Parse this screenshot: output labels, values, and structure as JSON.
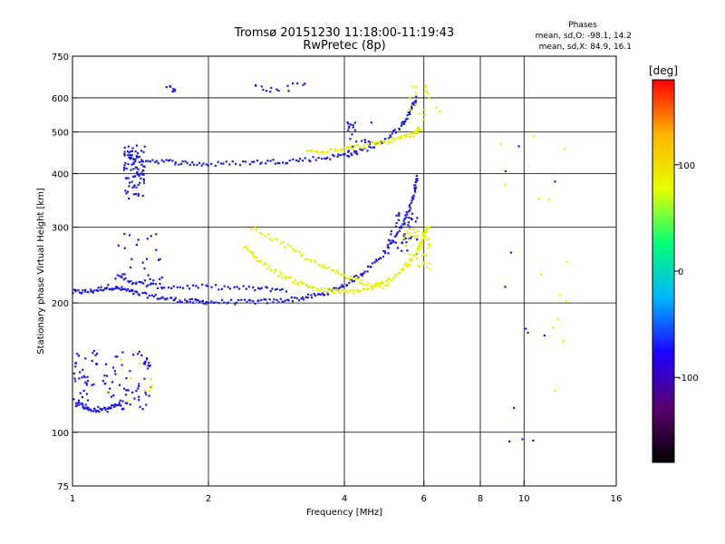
{
  "chart_data": {
    "type": "scatter",
    "title": "Tromsø 20151230 11:18:00-11:19:43",
    "subtitle": "RwPretec (8p)",
    "xlabel": "Frequency [MHz]",
    "ylabel": "Stationary phase Virtual Height [km]",
    "x_scale": "log",
    "y_scale": "log",
    "xlim": [
      1,
      16
    ],
    "ylim": [
      75,
      750
    ],
    "x_ticks": [
      1,
      2,
      4,
      6,
      8,
      10,
      16
    ],
    "y_ticks": [
      75,
      100,
      200,
      300,
      400,
      500,
      600,
      750
    ],
    "x_grid": [
      1,
      2,
      4,
      6,
      8,
      10,
      16
    ],
    "y_grid": [
      100,
      200,
      300,
      400,
      500,
      600
    ],
    "grid": true,
    "phase_stats": {
      "heading": "Phases",
      "line1": "mean, sd,O: -98.1, 14.2",
      "line2": "mean, sd,X:  84.9, 16.1"
    },
    "colorbar": {
      "label": "[deg]",
      "ticks": [
        100,
        0,
        -100
      ],
      "range": [
        -180,
        180
      ],
      "colors": [
        "#000000",
        "#5a006e",
        "#1e00ff",
        "#00b4ff",
        "#00ff78",
        "#e6ff00",
        "#ffb400",
        "#ff0000"
      ]
    },
    "series": [
      {
        "mode": "O",
        "color": "#1a1ad8",
        "segments": [
          {
            "kind": "curve",
            "points": [
              [
                1.0,
                212
              ],
              [
                1.1,
                213
              ],
              [
                1.2,
                218
              ],
              [
                1.3,
                215
              ],
              [
                1.4,
                210
              ],
              [
                1.6,
                205
              ],
              [
                1.8,
                202
              ],
              [
                2.0,
                201
              ],
              [
                2.4,
                201
              ],
              [
                2.8,
                202
              ],
              [
                3.2,
                205
              ],
              [
                3.6,
                210
              ],
              [
                4.0,
                220
              ],
              [
                4.4,
                235
              ],
              [
                4.8,
                255
              ],
              [
                5.2,
                285
              ],
              [
                5.5,
                320
              ],
              [
                5.7,
                360
              ],
              [
                5.8,
                400
              ]
            ]
          },
          {
            "kind": "curve",
            "points": [
              [
                1.25,
                230
              ],
              [
                1.4,
                222
              ],
              [
                1.6,
                218
              ],
              [
                2.0,
                218
              ],
              [
                2.5,
                216
              ],
              [
                3.0,
                215
              ]
            ]
          },
          {
            "kind": "curve",
            "points": [
              [
                1.3,
                440
              ],
              [
                1.45,
                430
              ],
              [
                1.7,
                425
              ],
              [
                2.0,
                420
              ],
              [
                2.5,
                425
              ],
              [
                3.0,
                428
              ],
              [
                3.6,
                435
              ],
              [
                4.2,
                445
              ],
              [
                4.8,
                470
              ],
              [
                5.3,
                510
              ],
              [
                5.6,
                560
              ],
              [
                5.8,
                600
              ]
            ]
          },
          {
            "kind": "cloud",
            "x": [
              1.3,
              1.45
            ],
            "y": [
              350,
              470
            ],
            "n": 80
          },
          {
            "kind": "cloud",
            "x": [
              1.0,
              1.5
            ],
            "y": [
              113,
              155
            ],
            "n": 110
          },
          {
            "kind": "curve",
            "points": [
              [
                1.02,
                118
              ],
              [
                1.1,
                113
              ],
              [
                1.2,
                113
              ],
              [
                1.28,
                118
              ]
            ]
          },
          {
            "kind": "cloud",
            "x": [
              5.0,
              5.8
            ],
            "y": [
              260,
              330
            ],
            "n": 40
          },
          {
            "kind": "cloud",
            "x": [
              4.0,
              4.6
            ],
            "y": [
              440,
              540
            ],
            "n": 30
          },
          {
            "kind": "cloud",
            "x": [
              1.25,
              1.6
            ],
            "y": [
              225,
              290
            ],
            "n": 25
          },
          {
            "kind": "cloud",
            "x": [
              2.5,
              3.3
            ],
            "y": [
              620,
              650
            ],
            "n": 15
          },
          {
            "kind": "cloud",
            "x": [
              1.6,
              1.7
            ],
            "y": [
              620,
              640
            ],
            "n": 8
          },
          {
            "kind": "cloud",
            "x": [
              9.0,
              12.0
            ],
            "y": [
              95,
              500
            ],
            "n": 12
          }
        ]
      },
      {
        "mode": "X",
        "color": "#e8f000",
        "segments": [
          {
            "kind": "curve",
            "points": [
              [
                2.4,
                270
              ],
              [
                2.6,
                250
              ],
              [
                2.9,
                232
              ],
              [
                3.2,
                222
              ],
              [
                3.6,
                214
              ],
              [
                4.0,
                212
              ],
              [
                4.5,
                215
              ],
              [
                5.0,
                225
              ],
              [
                5.4,
                240
              ],
              [
                5.8,
                262
              ],
              [
                6.0,
                285
              ],
              [
                6.1,
                300
              ]
            ]
          },
          {
            "kind": "curve",
            "points": [
              [
                3.3,
                450
              ],
              [
                3.8,
                455
              ],
              [
                4.3,
                462
              ],
              [
                4.8,
                472
              ],
              [
                5.3,
                482
              ],
              [
                5.7,
                495
              ],
              [
                5.9,
                510
              ]
            ]
          },
          {
            "kind": "curve",
            "points": [
              [
                2.5,
                300
              ],
              [
                3.0,
                270
              ],
              [
                3.5,
                245
              ],
              [
                4.0,
                232
              ],
              [
                4.5,
                222
              ],
              [
                5.0,
                218
              ]
            ]
          },
          {
            "kind": "cloud",
            "x": [
              5.4,
              6.2
            ],
            "y": [
              240,
              300
            ],
            "n": 45
          },
          {
            "kind": "cloud",
            "x": [
              5.5,
              6.6
            ],
            "y": [
              520,
              640
            ],
            "n": 20
          },
          {
            "kind": "cloud",
            "x": [
              1.1,
              1.5
            ],
            "y": [
              118,
              150
            ],
            "n": 10
          },
          {
            "kind": "cloud",
            "x": [
              8.8,
              12.5
            ],
            "y": [
              100,
              600
            ],
            "n": 14
          }
        ]
      }
    ]
  }
}
